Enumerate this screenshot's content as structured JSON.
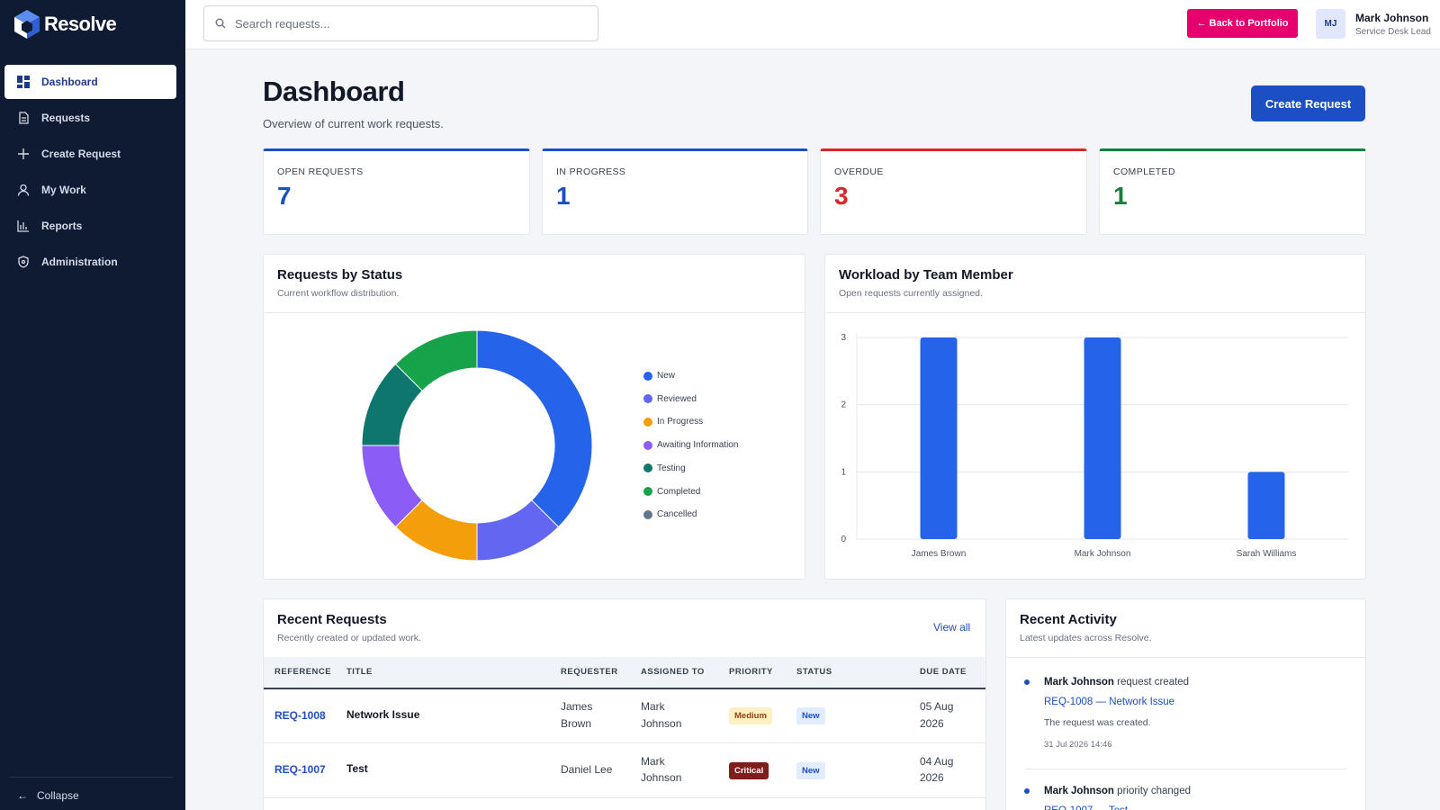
{
  "app": {
    "name": "Resolve"
  },
  "sidebar": {
    "items": [
      {
        "label": "Dashboard",
        "icon": "dashboard-icon",
        "active": true
      },
      {
        "label": "Requests",
        "icon": "document-icon"
      },
      {
        "label": "Create Request",
        "icon": "plus-icon"
      },
      {
        "label": "My Work",
        "icon": "user-icon"
      },
      {
        "label": "Reports",
        "icon": "bar-chart-icon"
      },
      {
        "label": "Administration",
        "icon": "shield-icon"
      }
    ],
    "collapse_label": "Collapse"
  },
  "topbar": {
    "search_placeholder": "Search requests...",
    "back_label": "← Back to Portfolio",
    "user_initials": "MJ",
    "user_name": "Mark Johnson",
    "user_role": "Service Desk Lead"
  },
  "page": {
    "title": "Dashboard",
    "subtitle": "Overview of current work requests.",
    "create_label": "Create Request"
  },
  "stats": [
    {
      "label": "OPEN REQUESTS",
      "value": "7",
      "color": "#1d4fc4"
    },
    {
      "label": "IN PROGRESS",
      "value": "1",
      "color": "#1d4fc4"
    },
    {
      "label": "OVERDUE",
      "value": "3",
      "color": "#dc2626"
    },
    {
      "label": "COMPLETED",
      "value": "1",
      "color": "#15803d"
    }
  ],
  "status_card": {
    "title": "Requests by Status",
    "subtitle": "Current workflow distribution."
  },
  "workload_card": {
    "title": "Workload by Team Member",
    "subtitle": "Open requests currently assigned."
  },
  "chart_data": [
    {
      "type": "pie",
      "categories": [
        "New",
        "Reviewed",
        "In Progress",
        "Awaiting Information",
        "Testing",
        "Completed",
        "Cancelled"
      ],
      "values": [
        3,
        1,
        1,
        1,
        1,
        1,
        0
      ],
      "colors": [
        "#2563eb",
        "#6366f1",
        "#f59e0b",
        "#8b5cf6",
        "#0f766e",
        "#16a34a",
        "#64748b"
      ],
      "legend": "right"
    },
    {
      "type": "bar",
      "categories": [
        "James Brown",
        "Mark Johnson",
        "Sarah Williams"
      ],
      "values": [
        3,
        3,
        1
      ],
      "ylim": [
        0,
        3
      ],
      "yticks": [
        "0",
        "1",
        "2",
        "3"
      ],
      "grid": true,
      "color": "#2563eb"
    }
  ],
  "recent_requests": {
    "title": "Recent Requests",
    "subtitle": "Recently created or updated work.",
    "view_all": "View all",
    "columns": [
      "REFERENCE",
      "TITLE",
      "REQUESTER",
      "ASSIGNED TO",
      "PRIORITY",
      "STATUS",
      "DUE DATE"
    ],
    "rows": [
      {
        "ref": "REQ-1008",
        "title": "Network Issue",
        "requester_1": "James",
        "requester_2": "Brown",
        "assigned_1": "Mark",
        "assigned_2": "Johnson",
        "priority": "Medium",
        "status": "New",
        "due_1": "05 Aug",
        "due_2": "2026"
      },
      {
        "ref": "REQ-1007",
        "title": "Test",
        "requester_1": "Daniel Lee",
        "requester_2": "",
        "assigned_1": "Mark",
        "assigned_2": "Johnson",
        "priority": "Critical",
        "status": "New",
        "due_1": "04 Aug",
        "due_2": "2026"
      }
    ]
  },
  "recent_activity": {
    "title": "Recent Activity",
    "subtitle": "Latest updates across Resolve.",
    "items": [
      {
        "actor": "Mark Johnson",
        "action": "request created",
        "link": "REQ-1008 — Network Issue",
        "detail": "The request was created.",
        "time": "31 Jul 2026 14:46"
      },
      {
        "actor": "Mark Johnson",
        "action": "priority changed",
        "link": "REQ-1007 — Test",
        "detail": "",
        "time": ""
      }
    ]
  }
}
